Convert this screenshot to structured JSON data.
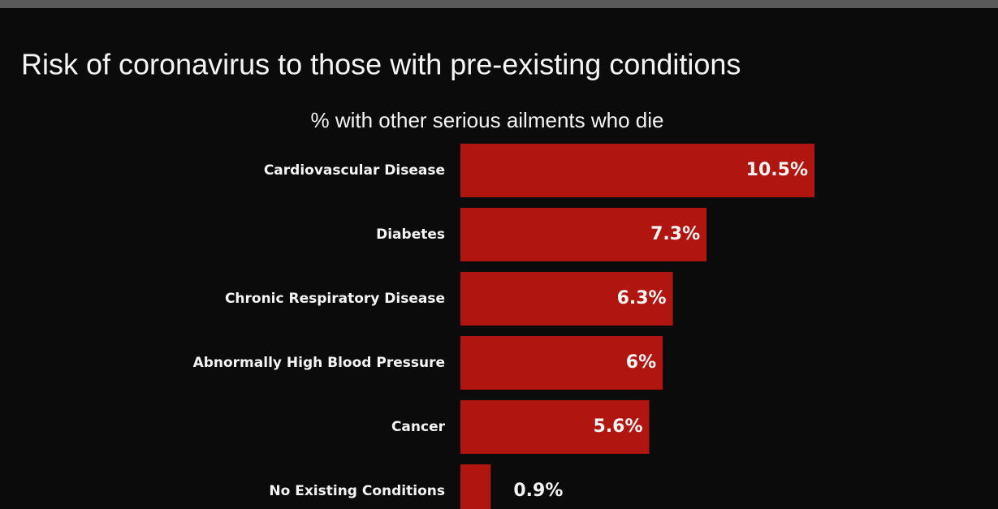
{
  "chart_data": {
    "type": "barh",
    "title": "Risk of coronavirus to those with pre-existing conditions",
    "subtitle": "% with other serious ailments who die",
    "categories": [
      "Cardiovascular Disease",
      "Diabetes",
      "Chronic Respiratory Disease",
      "Abnormally High Blood Pressure",
      "Cancer",
      "No Existing Conditions"
    ],
    "values": [
      10.5,
      7.3,
      6.3,
      6,
      5.6,
      0.9
    ],
    "value_labels": [
      "10.5%",
      "7.3%",
      "6.3%",
      "6%",
      "5.6%",
      "0.9%"
    ],
    "color": "#b0150f"
  }
}
